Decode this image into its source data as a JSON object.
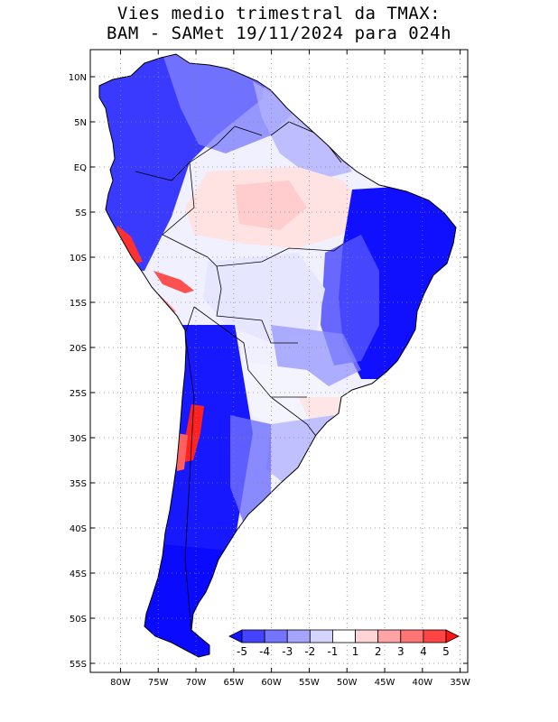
{
  "title": {
    "line1": "Vies medio trimestral da TMAX:",
    "line2": "BAM - SAMet 19/11/2024  para 024h"
  },
  "map": {
    "region": "South America",
    "projection": "lat-lon",
    "lon_range": [
      -84,
      -34
    ],
    "lat_range": [
      -56,
      13
    ],
    "grid": true,
    "lon_ticks": [
      "80W",
      "75W",
      "70W",
      "65W",
      "60W",
      "55W",
      "50W",
      "45W",
      "40W",
      "35W"
    ],
    "lat_ticks": [
      "10N",
      "5N",
      "EQ",
      "5S",
      "10S",
      "15S",
      "20S",
      "25S",
      "30S",
      "35S",
      "40S",
      "45S",
      "50S",
      "55S"
    ],
    "ocean_color": "#ffffff",
    "background_bias_color": "#f2f3ff",
    "outline_color": "#000000"
  },
  "colorbar": {
    "placement": "bottom-right, inside map",
    "labels": [
      "-5",
      "-4",
      "-3",
      "-2",
      "-1",
      "1",
      "2",
      "3",
      "4",
      "5"
    ],
    "colors": [
      "#1414ff",
      "#4444ff",
      "#7474ff",
      "#a4a4ff",
      "#d4d4ff",
      "#ffffff",
      "#ffd4d4",
      "#ffa4a4",
      "#ff7474",
      "#ff4444",
      "#ff1414"
    ]
  },
  "regions": {
    "strong_negative": [
      "Andes north",
      "Colombia/Venezuela",
      "NE Brazil",
      "Patagonia / Chile"
    ],
    "weak_positive": [
      "central Amazon",
      "northern Chile coast (Atacama)",
      "Peru coast"
    ]
  }
}
